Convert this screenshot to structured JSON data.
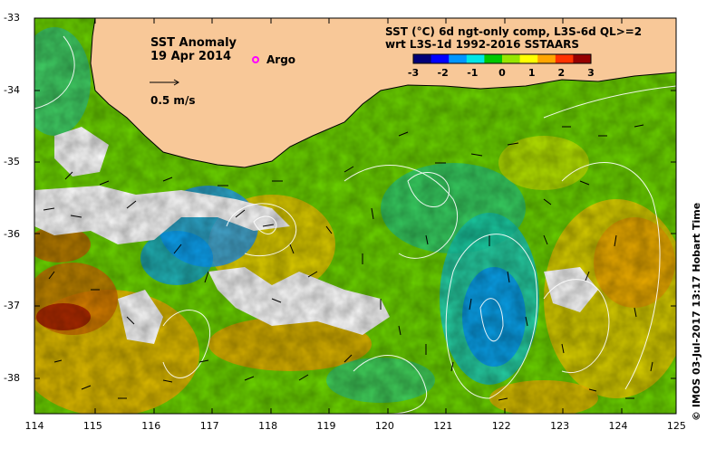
{
  "map": {
    "title": "SST Anomaly",
    "date": "19 Apr 2014",
    "argo_label": "Argo",
    "scale_label": "0.5 m/s",
    "product_line1": "SST (°C) 6d ngt-only comp, L3S-6d QL>=2",
    "product_line2": "wrt L3S-1d 1992-2016 SSTAARS",
    "credit": "©  IMOS 03-Jul-2017 13:17 Hobart Time",
    "colorbar": {
      "ticks": [
        "-3",
        "-2",
        "-1",
        "0",
        "1",
        "2",
        "3"
      ],
      "min": -3,
      "max": 3,
      "colors": [
        "#000078",
        "#0000ff",
        "#0096ff",
        "#00e6e6",
        "#00c800",
        "#96e600",
        "#ffff00",
        "#ffa500",
        "#ff3200",
        "#960000"
      ]
    },
    "lat_labels": [
      "-33",
      "-34",
      "-35",
      "-36",
      "-37",
      "-38"
    ],
    "lon_labels": [
      "114",
      "115",
      "116",
      "117",
      "118",
      "119",
      "120",
      "121",
      "122",
      "123",
      "124",
      "125"
    ],
    "land_color": "#f8c898",
    "argo_color": "#ff00ff"
  }
}
